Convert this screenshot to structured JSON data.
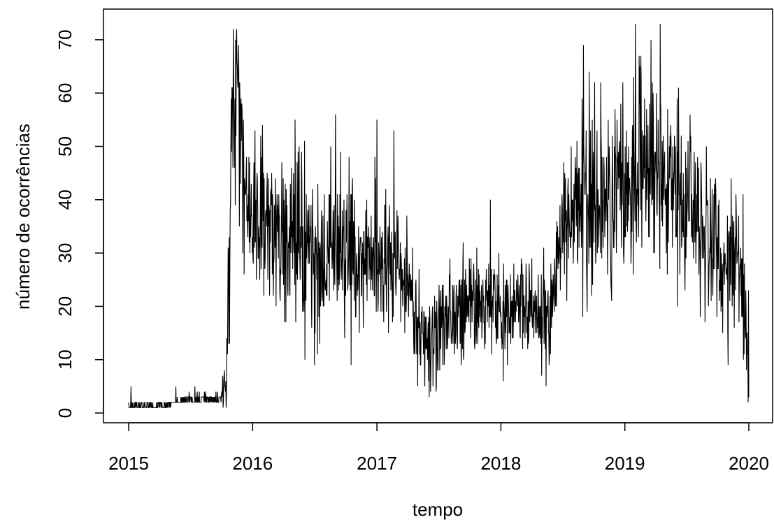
{
  "chart_data": {
    "type": "line",
    "title": "",
    "xlabel": "tempo",
    "ylabel": "número de ocorrências",
    "xlim": [
      "2015-01-01",
      "2020-01-01"
    ],
    "ylim": [
      0,
      73
    ],
    "x_ticks": [
      "2015",
      "2016",
      "2017",
      "2018",
      "2019",
      "2020"
    ],
    "y_ticks": [
      0,
      10,
      20,
      30,
      40,
      50,
      60,
      70
    ],
    "line_color": "#000000",
    "grid": false,
    "frequency": "daily",
    "series": [
      {
        "x_start": "2015-01-01",
        "x_end": "2020-01-01",
        "trend": [
          {
            "x": "2015-01-01",
            "y": 1
          },
          {
            "x": "2015-04-01",
            "y": 1
          },
          {
            "x": "2015-07-01",
            "y": 2
          },
          {
            "x": "2015-10-01",
            "y": 2
          },
          {
            "x": "2015-10-15",
            "y": 6
          },
          {
            "x": "2015-11-01",
            "y": 50
          },
          {
            "x": "2015-11-15",
            "y": 62
          },
          {
            "x": "2015-12-01",
            "y": 47
          },
          {
            "x": "2016-01-01",
            "y": 37
          },
          {
            "x": "2016-03-01",
            "y": 35
          },
          {
            "x": "2016-05-01",
            "y": 33
          },
          {
            "x": "2016-07-01",
            "y": 28
          },
          {
            "x": "2016-09-01",
            "y": 30
          },
          {
            "x": "2016-11-01",
            "y": 28
          },
          {
            "x": "2017-01-01",
            "y": 28
          },
          {
            "x": "2017-03-01",
            "y": 28
          },
          {
            "x": "2017-04-15",
            "y": 22
          },
          {
            "x": "2017-05-01",
            "y": 15
          },
          {
            "x": "2017-07-01",
            "y": 15
          },
          {
            "x": "2017-09-01",
            "y": 20
          },
          {
            "x": "2017-11-01",
            "y": 22
          },
          {
            "x": "2018-01-01",
            "y": 18
          },
          {
            "x": "2018-03-01",
            "y": 20
          },
          {
            "x": "2018-05-01",
            "y": 18
          },
          {
            "x": "2018-06-01",
            "y": 22
          },
          {
            "x": "2018-07-01",
            "y": 33
          },
          {
            "x": "2018-09-01",
            "y": 40
          },
          {
            "x": "2018-11-01",
            "y": 42
          },
          {
            "x": "2019-01-01",
            "y": 43
          },
          {
            "x": "2019-03-01",
            "y": 45
          },
          {
            "x": "2019-05-01",
            "y": 42
          },
          {
            "x": "2019-07-01",
            "y": 38
          },
          {
            "x": "2019-09-01",
            "y": 35
          },
          {
            "x": "2019-10-15",
            "y": 25
          },
          {
            "x": "2019-11-01",
            "y": 30
          },
          {
            "x": "2019-12-01",
            "y": 30
          },
          {
            "x": "2019-12-25",
            "y": 15
          },
          {
            "x": "2020-01-01",
            "y": 5
          }
        ],
        "spread": [
          {
            "x": "2015-01-01",
            "y": 0.5
          },
          {
            "x": "2015-10-01",
            "y": 0.8
          },
          {
            "x": "2015-11-01",
            "y": 8
          },
          {
            "x": "2016-01-01",
            "y": 8
          },
          {
            "x": "2016-06-01",
            "y": 8
          },
          {
            "x": "2017-01-01",
            "y": 7
          },
          {
            "x": "2017-05-01",
            "y": 5
          },
          {
            "x": "2017-12-01",
            "y": 5
          },
          {
            "x": "2018-06-01",
            "y": 5
          },
          {
            "x": "2018-09-01",
            "y": 9
          },
          {
            "x": "2019-03-01",
            "y": 9
          },
          {
            "x": "2019-08-01",
            "y": 8
          },
          {
            "x": "2020-01-01",
            "y": 6
          }
        ],
        "peaks": [
          {
            "x": "2015-01-08",
            "y": 5
          },
          {
            "x": "2015-05-20",
            "y": 5
          },
          {
            "x": "2015-07-15",
            "y": 5
          },
          {
            "x": "2015-10-10",
            "y": 8
          },
          {
            "x": "2015-10-25",
            "y": 13
          },
          {
            "x": "2015-11-05",
            "y": 72
          },
          {
            "x": "2015-11-15",
            "y": 72
          },
          {
            "x": "2016-09-01",
            "y": 56
          },
          {
            "x": "2016-07-01",
            "y": 9
          },
          {
            "x": "2017-01-01",
            "y": 55
          },
          {
            "x": "2017-02-20",
            "y": 53
          },
          {
            "x": "2017-05-01",
            "y": 5
          },
          {
            "x": "2017-06-15",
            "y": 5
          },
          {
            "x": "2017-12-01",
            "y": 40
          },
          {
            "x": "2018-09-01",
            "y": 69
          },
          {
            "x": "2019-02-01",
            "y": 73
          },
          {
            "x": "2019-04-15",
            "y": 73
          },
          {
            "x": "2019-11-01",
            "y": 9
          },
          {
            "x": "2020-01-01",
            "y": 3
          }
        ]
      }
    ]
  }
}
